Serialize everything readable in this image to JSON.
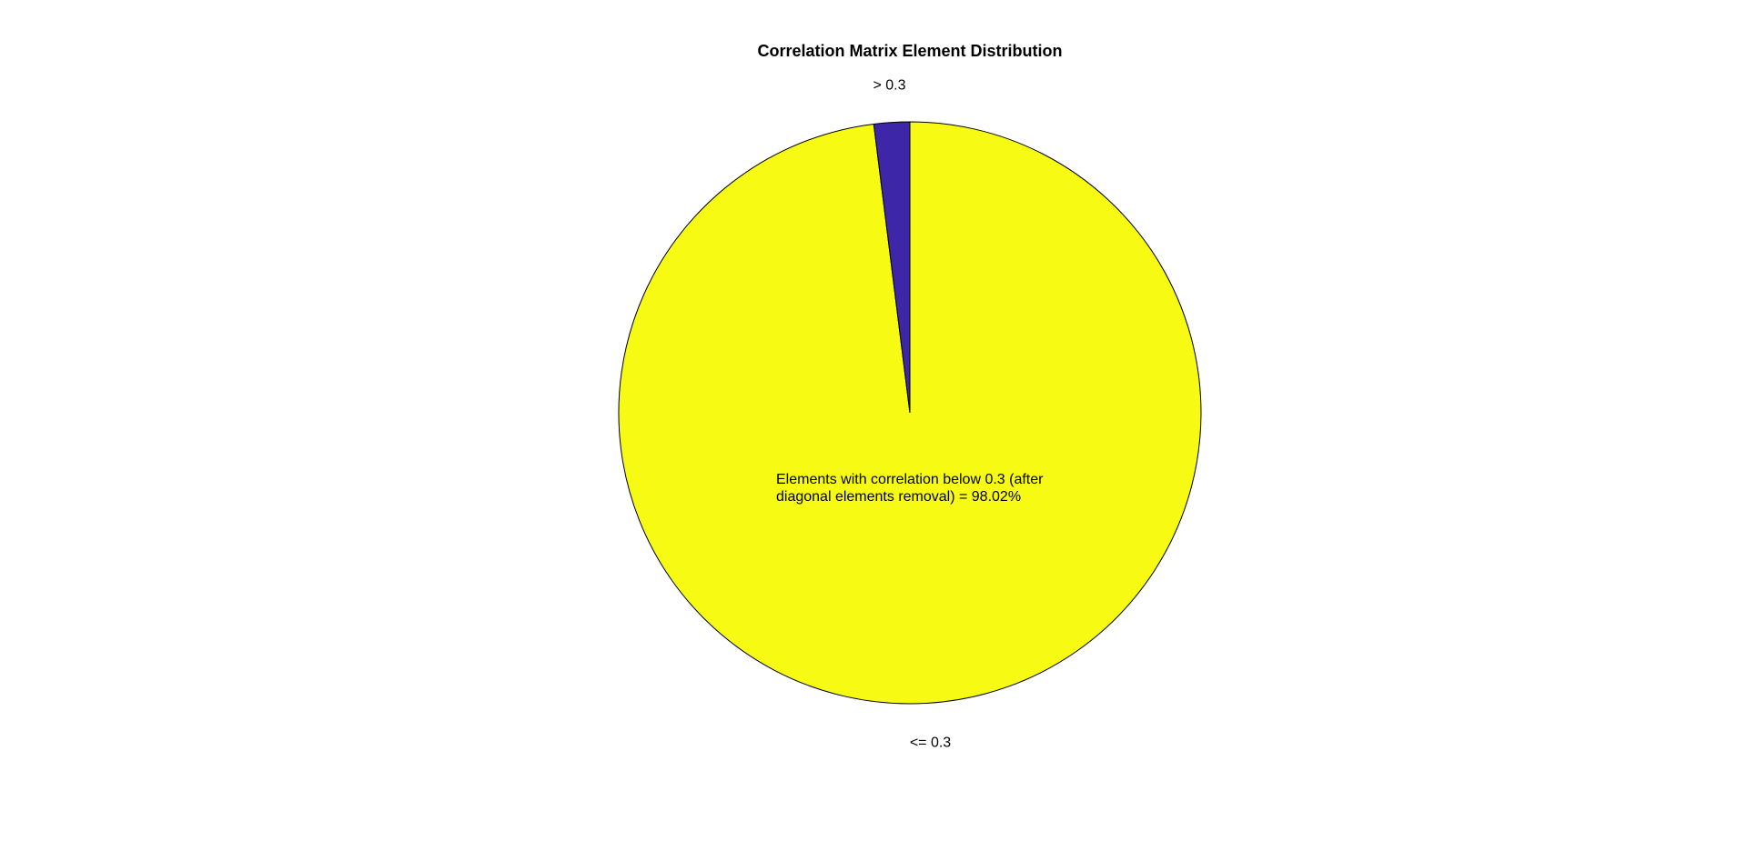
{
  "chart_data": {
    "type": "pie",
    "title": "Correlation Matrix Element Distribution",
    "slices": [
      {
        "label": "<= 0.3",
        "value": 98.02,
        "color": "#f7fa13"
      },
      {
        "label": "> 0.3",
        "value": 1.98,
        "color": "#3d26a8"
      }
    ],
    "annotation": "Elements with correlation below 0.3 (after diagonal elements removal) = 98.02%"
  }
}
